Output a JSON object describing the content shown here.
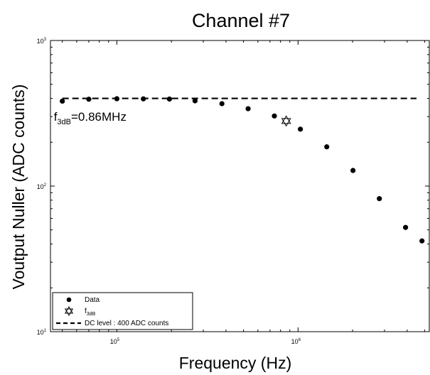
{
  "chart_data": {
    "type": "scatter",
    "title": "Channel #7",
    "xlabel": "Frequency (Hz)",
    "ylabel": "Voutput Nuller (ADC counts)",
    "xscale": "log",
    "yscale": "log",
    "xlim": [
      43000,
      5300000
    ],
    "ylim": [
      10,
      1000
    ],
    "x_ticks": [
      {
        "base": "10",
        "exp": "5",
        "value": 100000
      },
      {
        "base": "10",
        "exp": "6",
        "value": 1000000
      }
    ],
    "y_ticks": [
      {
        "base": "10",
        "exp": "1",
        "value": 10
      },
      {
        "base": "10",
        "exp": "2",
        "value": 100
      },
      {
        "base": "10",
        "exp": "3",
        "value": 1000
      }
    ],
    "series": [
      {
        "name": "Data",
        "marker": "filled-circle",
        "points": [
          {
            "x": 50000,
            "y": 383
          },
          {
            "x": 70000,
            "y": 395
          },
          {
            "x": 100000,
            "y": 398
          },
          {
            "x": 140000,
            "y": 397
          },
          {
            "x": 195000,
            "y": 396
          },
          {
            "x": 270000,
            "y": 385
          },
          {
            "x": 380000,
            "y": 368
          },
          {
            "x": 530000,
            "y": 340
          },
          {
            "x": 740000,
            "y": 303
          },
          {
            "x": 1030000,
            "y": 246
          },
          {
            "x": 1440000,
            "y": 186
          },
          {
            "x": 2010000,
            "y": 128
          },
          {
            "x": 2810000,
            "y": 82
          },
          {
            "x": 3920000,
            "y": 52
          },
          {
            "x": 4830000,
            "y": 42
          }
        ]
      },
      {
        "name": "f",
        "name_sub": "3dB",
        "marker": "hexagram",
        "points": [
          {
            "x": 860000,
            "y": 280
          }
        ]
      }
    ],
    "reference_line": {
      "name": "DC level :  400 ADC counts",
      "y": 400,
      "style": "dashed"
    },
    "annotation": {
      "base": "f",
      "sub": "3dB",
      "rest": "=0.86MHz",
      "x": 50000,
      "y": 300
    },
    "legend": {
      "position": "bottom-left"
    },
    "grid": false
  }
}
